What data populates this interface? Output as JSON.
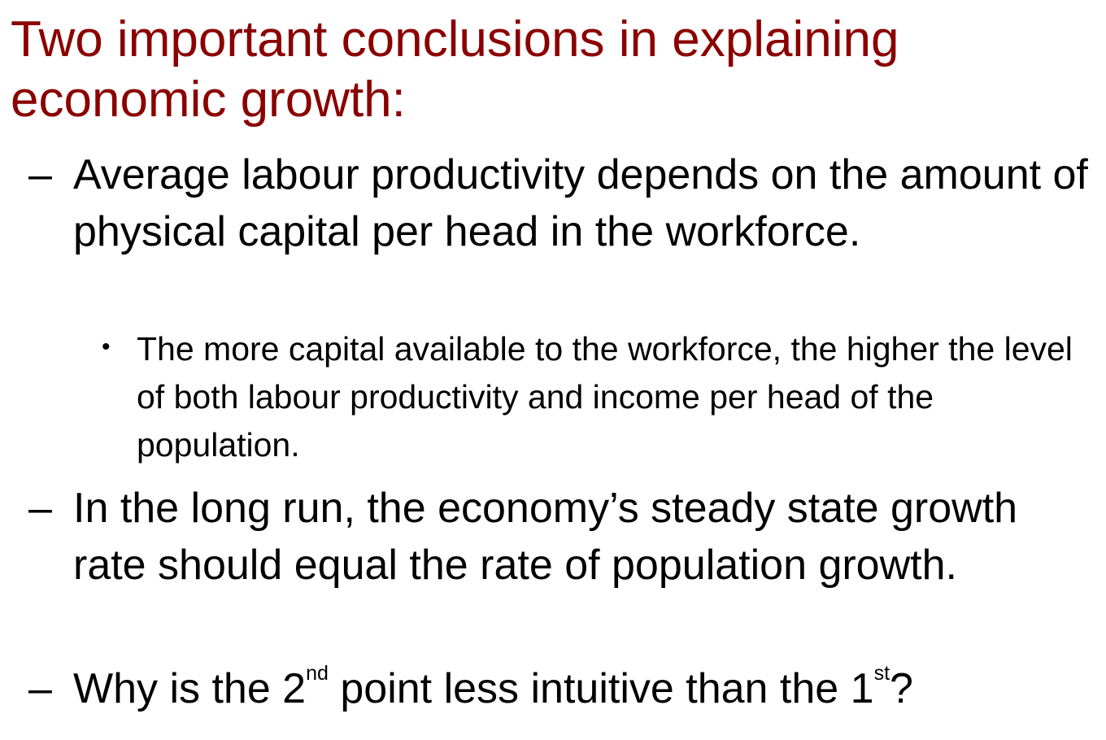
{
  "slide": {
    "title": "Two important conclusions in explaining economic growth:",
    "points": [
      {
        "marker": "–",
        "text": "Average labour productivity depends on the amount of physical capital per head in the workforce.",
        "subpoints": [
          {
            "marker": "•",
            "text": "The more capital available to the workforce, the higher the level of both labour productivity and income per head of the population."
          }
        ]
      },
      {
        "marker": "–",
        "text": "In the long run, the economy’s steady state growth rate should equal the rate of  population growth."
      },
      {
        "marker": "–",
        "question": {
          "part1": "Why is the 2",
          "sup1": "nd",
          "part2": " point less intuitive than the 1",
          "sup2": "st",
          "part3": "?"
        }
      }
    ]
  },
  "colors": {
    "title": "#8b0000",
    "body": "#000000",
    "background": "#ffffff"
  }
}
